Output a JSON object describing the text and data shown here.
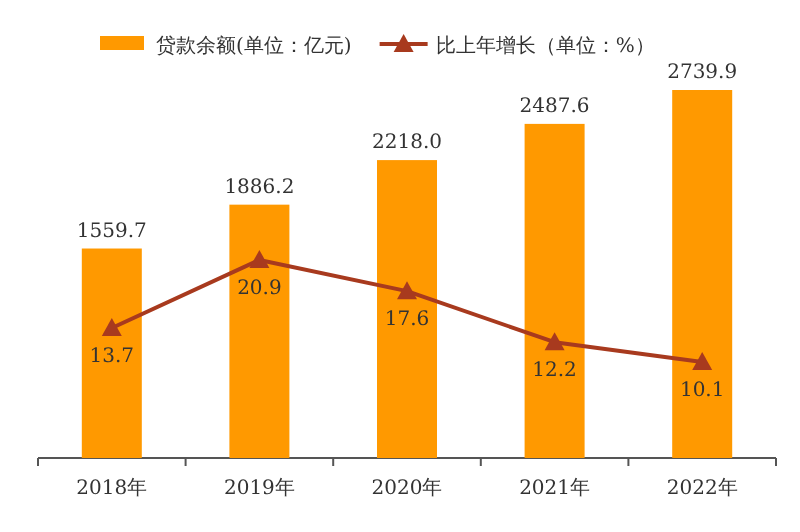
{
  "chart_data": {
    "type": "bar",
    "categories": [
      "2018年",
      "2019年",
      "2020年",
      "2021年",
      "2022年"
    ],
    "series": [
      {
        "name": "贷款余额(单位：亿元)",
        "color": "#ff9900",
        "values": [
          1559.7,
          1886.2,
          2218.0,
          2487.6,
          2739.9
        ],
        "value_labels": [
          "1559.7",
          "1886.2",
          "2218.0",
          "2487.6",
          "2739.9"
        ]
      },
      {
        "name": "比上年增长（单位：%）",
        "type": "line",
        "axis": "y2",
        "color": "#a83a1e",
        "values": [
          13.7,
          20.9,
          17.6,
          12.2,
          10.1
        ]
      }
    ],
    "data_labels": true,
    "legend": "top",
    "marker": "triangle",
    "line_style": "solid"
  }
}
